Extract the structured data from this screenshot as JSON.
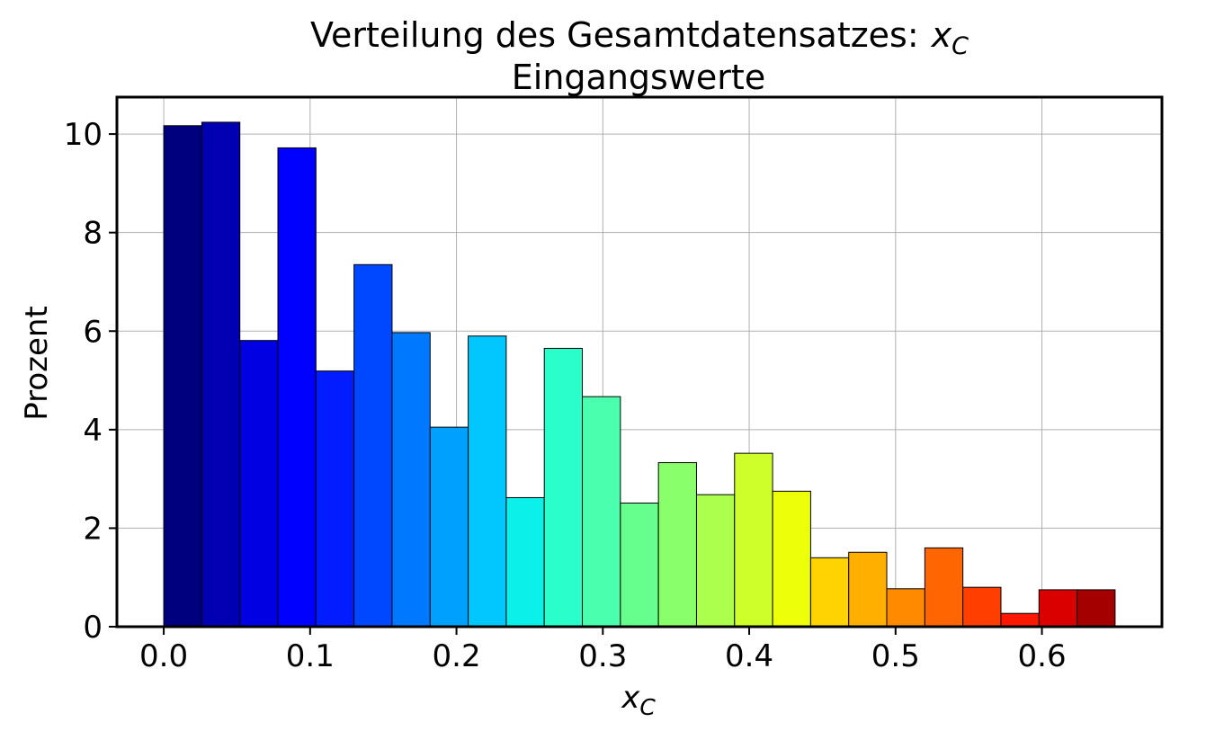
{
  "chart_data": {
    "type": "bar",
    "title": "Verteilung des Gesamtdatensatzes:",
    "title_math": "x",
    "title_math_sub": "C",
    "subtitle": "Eingangswerte",
    "xlabel": "x",
    "xlabel_sub": "C",
    "ylabel": "Prozent",
    "xlim": [
      -0.032,
      0.682
    ],
    "ylim": [
      0,
      10.75
    ],
    "xticks": [
      0.0,
      0.1,
      0.2,
      0.3,
      0.4,
      0.5,
      0.6
    ],
    "xtick_labels": [
      "0.0",
      "0.1",
      "0.2",
      "0.3",
      "0.4",
      "0.5",
      "0.6"
    ],
    "yticks": [
      0,
      2,
      4,
      6,
      8,
      10
    ],
    "ytick_labels": [
      "0",
      "2",
      "4",
      "6",
      "8",
      "10"
    ],
    "grid": true,
    "bin_edges": [
      0.0,
      0.026,
      0.052,
      0.078,
      0.104,
      0.13,
      0.156,
      0.182,
      0.208,
      0.234,
      0.26,
      0.286,
      0.312,
      0.338,
      0.364,
      0.39,
      0.416,
      0.442,
      0.468,
      0.494,
      0.52,
      0.546,
      0.572,
      0.598,
      0.624,
      0.65
    ],
    "values": [
      10.17,
      10.24,
      5.81,
      9.72,
      5.19,
      7.35,
      5.97,
      4.05,
      5.9,
      2.62,
      5.65,
      4.67,
      2.51,
      3.33,
      2.68,
      3.52,
      2.75,
      1.4,
      1.51,
      0.77,
      1.6,
      0.8,
      0.27,
      0.75,
      0.75
    ],
    "colors": [
      "#00007f",
      "#0000b2",
      "#0000e3",
      "#0000ff",
      "#001cff",
      "#0048ff",
      "#0078ff",
      "#00a0ff",
      "#00c8ff",
      "#0bf0e8",
      "#2affcc",
      "#4affad",
      "#66ff8d",
      "#8aff6c",
      "#acff4d",
      "#ceff2b",
      "#eeff0a",
      "#ffd300",
      "#ffaf00",
      "#ff8a00",
      "#ff6500",
      "#ff3e00",
      "#ff1800",
      "#db0000",
      "#a50000"
    ]
  }
}
